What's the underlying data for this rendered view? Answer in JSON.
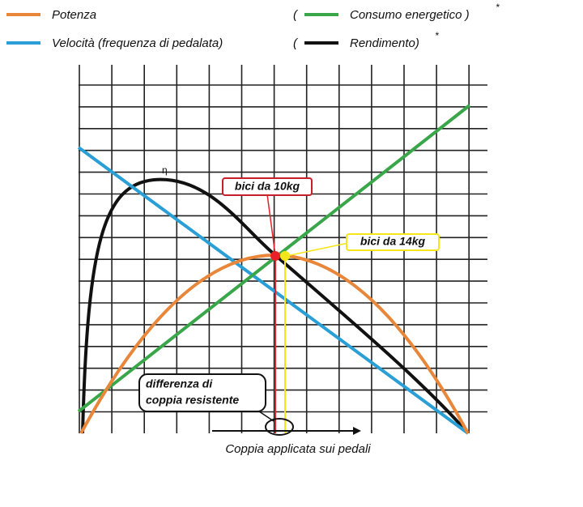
{
  "legend": [
    {
      "label": "Potenza"
    },
    {
      "label": "Velocità (frequenza di pedalata)"
    },
    {
      "open": "(",
      "label": "Consumo  energetico )",
      "mark": "*"
    },
    {
      "open": "(",
      "label": "Rendimento)",
      "mark": "*"
    }
  ],
  "curve_label": "η",
  "annotations": [
    "bici da 10kg",
    "bici da 14kg",
    [
      "differenza di",
      "coppia resistente"
    ]
  ],
  "axis_label": "Coppia applicata sui pedali"
}
